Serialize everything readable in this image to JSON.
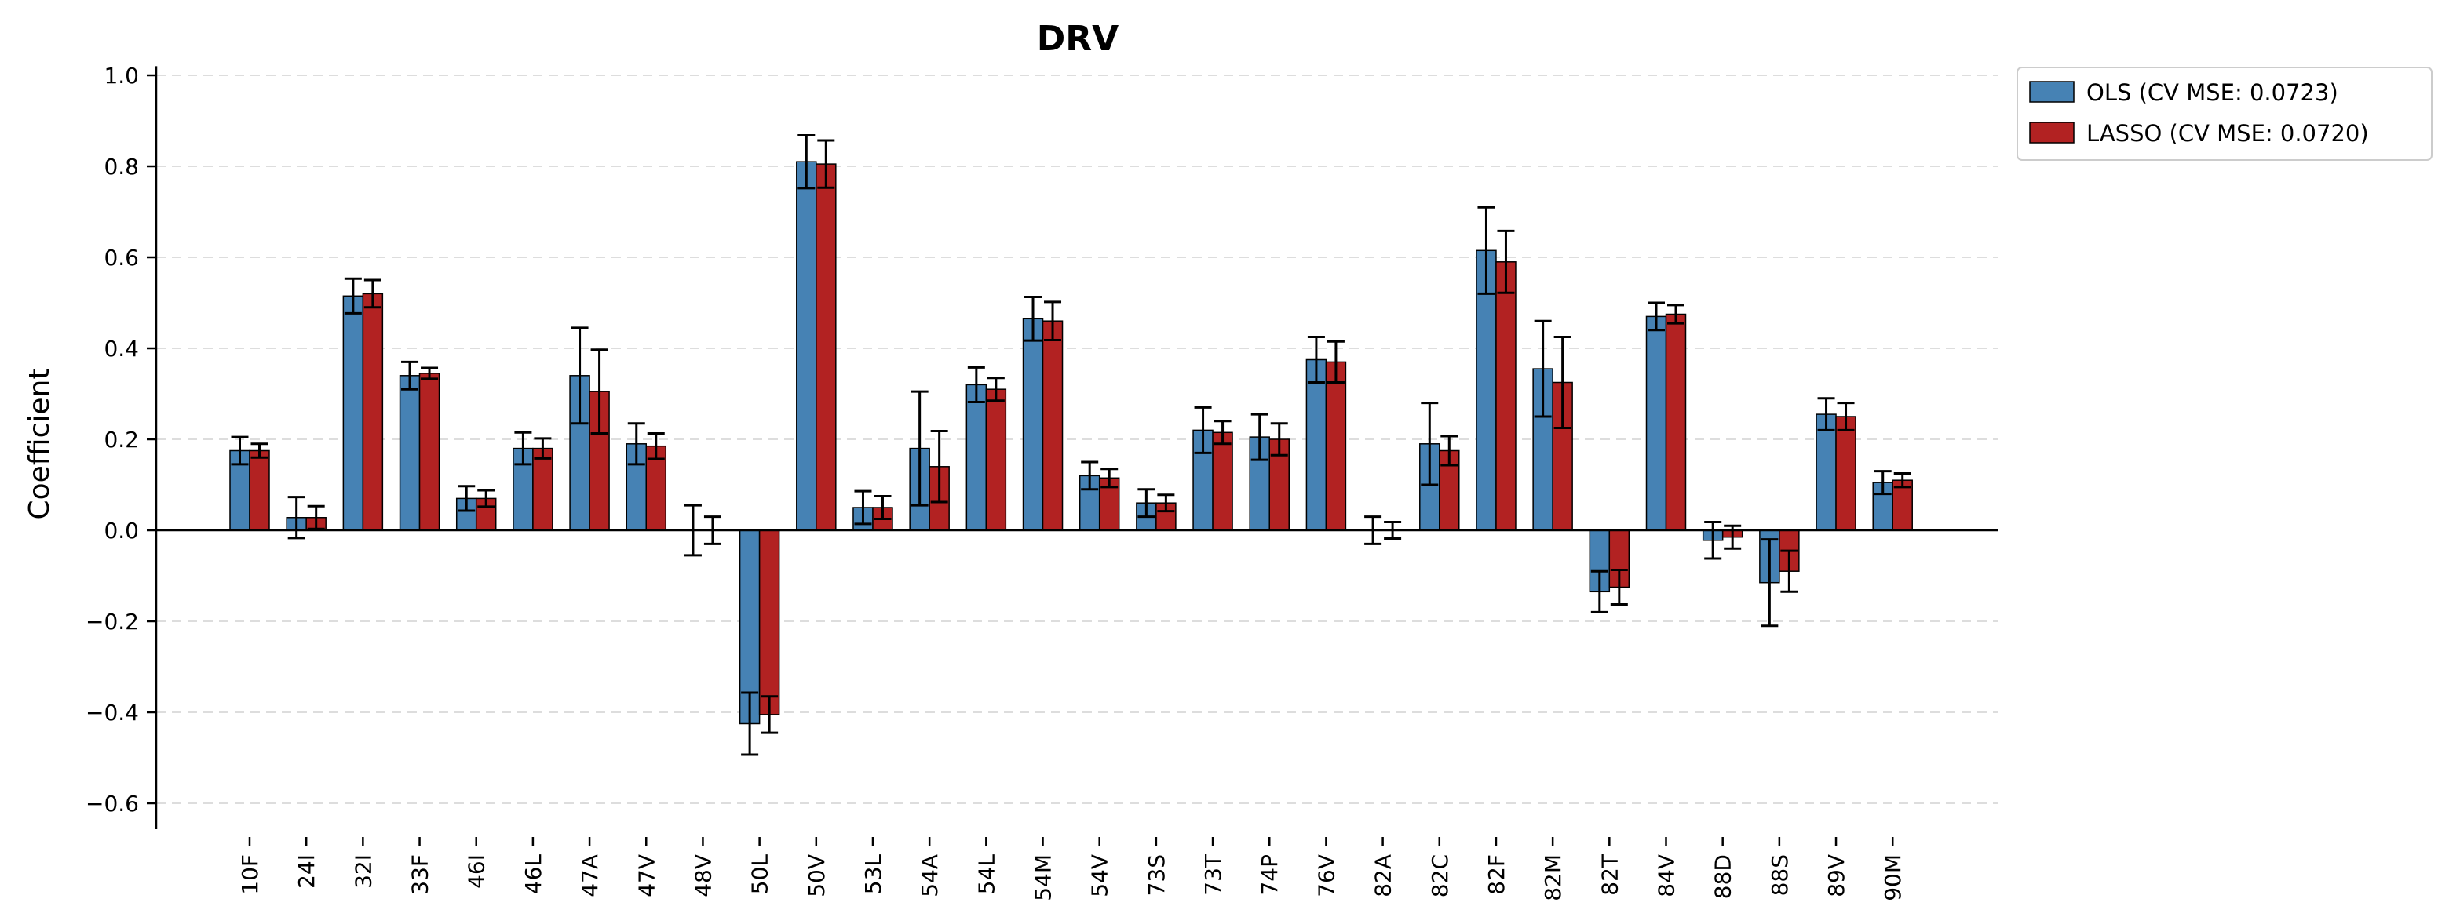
{
  "chart_data": {
    "type": "bar",
    "title": "DRV",
    "xlabel": "",
    "ylabel": "Coefficient",
    "ylim": [
      -0.65,
      1.02
    ],
    "yticks": [
      -0.6,
      -0.4,
      -0.2,
      0.0,
      0.2,
      0.4,
      0.6,
      0.8,
      1.0
    ],
    "ytick_labels": [
      "−0.6",
      "−0.4",
      "−0.2",
      "0.0",
      "0.2",
      "0.4",
      "0.6",
      "0.8",
      "1.0"
    ],
    "grid": "y dashed",
    "legend_position": "top-right outside",
    "categories": [
      "10F",
      "24I",
      "32I",
      "33F",
      "46I",
      "46L",
      "47A",
      "47V",
      "48V",
      "50L",
      "50V",
      "53L",
      "54A",
      "54L",
      "54M",
      "54V",
      "73S",
      "73T",
      "74P",
      "76V",
      "82A",
      "82C",
      "82F",
      "82M",
      "82T",
      "84V",
      "88D",
      "88S",
      "89V",
      "90M"
    ],
    "series": [
      {
        "name": "OLS (CV MSE: 0.0723)",
        "color": "#4682b4",
        "values": [
          0.175,
          0.028,
          0.515,
          0.34,
          0.07,
          0.18,
          0.34,
          0.19,
          0.0,
          -0.425,
          0.81,
          0.05,
          0.18,
          0.32,
          0.465,
          0.12,
          0.06,
          0.22,
          0.205,
          0.375,
          0.0,
          0.19,
          0.615,
          0.355,
          -0.135,
          0.47,
          -0.022,
          -0.115,
          0.255,
          0.105
        ],
        "errors": [
          0.03,
          0.045,
          0.038,
          0.03,
          0.027,
          0.035,
          0.105,
          0.045,
          0.055,
          0.068,
          0.058,
          0.036,
          0.125,
          0.038,
          0.048,
          0.03,
          0.03,
          0.05,
          0.05,
          0.05,
          0.03,
          0.09,
          0.095,
          0.105,
          0.045,
          0.03,
          0.04,
          0.095,
          0.035,
          0.025
        ]
      },
      {
        "name": "LASSO (CV MSE: 0.0720)",
        "color": "#b22222",
        "values": [
          0.175,
          0.028,
          0.52,
          0.345,
          0.07,
          0.18,
          0.305,
          0.185,
          0.0,
          -0.405,
          0.805,
          0.05,
          0.14,
          0.31,
          0.46,
          0.115,
          0.06,
          0.215,
          0.2,
          0.37,
          0.0,
          0.175,
          0.59,
          0.325,
          -0.125,
          0.475,
          -0.015,
          -0.09,
          0.25,
          0.11
        ],
        "errors": [
          0.015,
          0.025,
          0.03,
          0.012,
          0.018,
          0.022,
          0.092,
          0.028,
          0.03,
          0.04,
          0.052,
          0.025,
          0.078,
          0.025,
          0.042,
          0.02,
          0.018,
          0.025,
          0.035,
          0.045,
          0.018,
          0.032,
          0.068,
          0.1,
          0.038,
          0.02,
          0.025,
          0.045,
          0.03,
          0.015
        ]
      }
    ]
  }
}
